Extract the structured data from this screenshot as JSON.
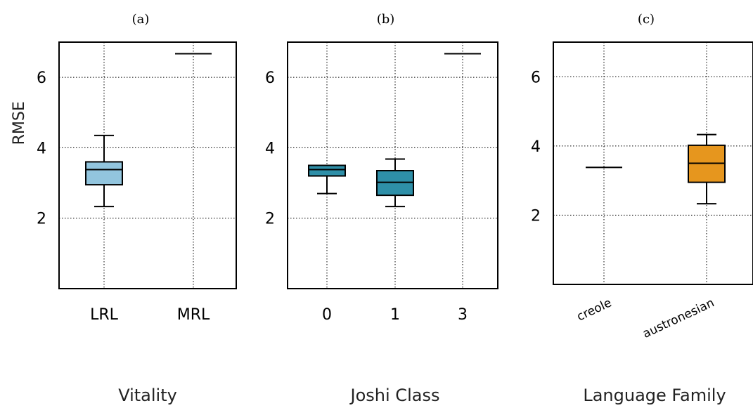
{
  "colors": {
    "vitality": "#92c5de",
    "joshi": "#2e8fa8",
    "family": "#e6961e"
  },
  "chart_data": [
    {
      "type": "box",
      "panel_label": "(a)",
      "xlabel": "Vitality",
      "ylabel": "RMSE",
      "ylim": [
        0,
        7
      ],
      "yticks": [
        2,
        4,
        6
      ],
      "grid": true,
      "categories": [
        "LRL",
        "MRL"
      ],
      "boxes": [
        {
          "category": "LRL",
          "min": 2.33,
          "q1": 2.95,
          "median": 3.38,
          "q3": 3.6,
          "max": 4.35
        },
        {
          "category": "MRL",
          "min": 6.67,
          "q1": 6.67,
          "median": 6.67,
          "q3": 6.67,
          "max": 6.67
        }
      ]
    },
    {
      "type": "box",
      "panel_label": "(b)",
      "xlabel": "Joshi Class",
      "ylabel": "",
      "ylim": [
        0,
        7
      ],
      "yticks": [
        2,
        4,
        6
      ],
      "grid": true,
      "categories": [
        "0",
        "1",
        "3"
      ],
      "boxes": [
        {
          "category": "0",
          "min": 2.7,
          "q1": 3.2,
          "median": 3.38,
          "q3": 3.5,
          "max": 3.5
        },
        {
          "category": "1",
          "min": 2.33,
          "q1": 2.65,
          "median": 3.02,
          "q3": 3.35,
          "max": 3.68
        },
        {
          "category": "3",
          "min": 6.67,
          "q1": 6.67,
          "median": 6.67,
          "q3": 6.67,
          "max": 6.67
        }
      ]
    },
    {
      "type": "box",
      "panel_label": "(c)",
      "xlabel": "Language Family",
      "ylabel": "",
      "ylim": [
        0,
        7
      ],
      "yticks": [
        2,
        4,
        6
      ],
      "grid": true,
      "categories": [
        "creole",
        "austronesian"
      ],
      "boxes": [
        {
          "category": "creole",
          "min": 3.38,
          "q1": 3.38,
          "median": 3.38,
          "q3": 3.38,
          "max": 3.38
        },
        {
          "category": "austronesian",
          "min": 2.33,
          "q1": 2.95,
          "median": 3.5,
          "q3": 4.02,
          "max": 4.33
        }
      ]
    }
  ]
}
